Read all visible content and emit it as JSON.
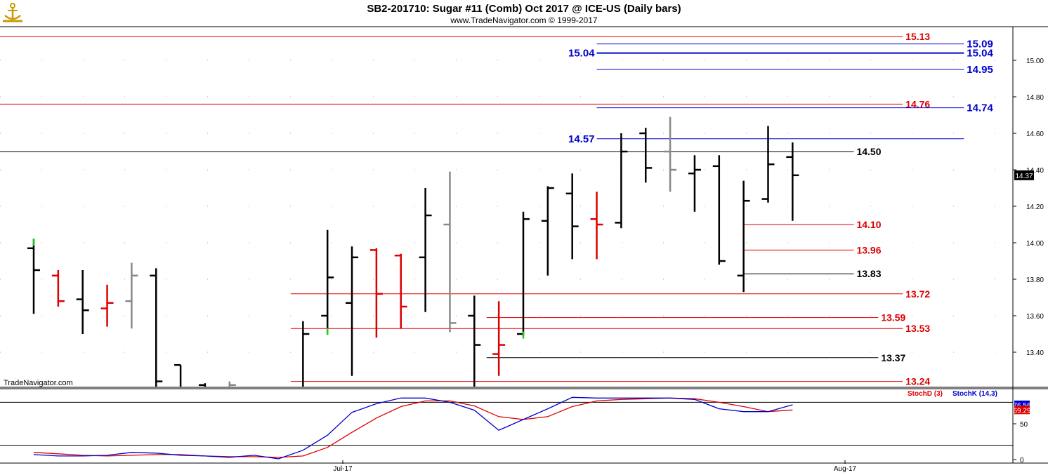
{
  "header": {
    "title": "SB2-201710:  Sugar #11 (Comb) Oct 2017 @ ICE-US  (Daily bars)",
    "subtitle": "www.TradeNavigator.com © 1999-2017",
    "watermark": "TradeNavigator.com",
    "logo_icon": "anchor-logo-icon"
  },
  "colors": {
    "red": "#dd0000",
    "blue": "#0000cc",
    "black": "#000000",
    "gray": "#888888",
    "green": "#22cc22"
  },
  "chart_data": [
    {
      "type": "ohlc",
      "title": "SB2-201710:  Sugar #11 (Comb) Oct 2017 @ ICE-US  (Daily bars)",
      "ylim": [
        13.2,
        15.2
      ],
      "y_ticks": [
        "15.00",
        "14.80",
        "14.60",
        "14.40",
        "14.20",
        "14.00",
        "13.80",
        "13.60",
        "13.40"
      ],
      "x_ticks": [
        "Jul-17",
        "Aug-17"
      ],
      "last_price": "14.37",
      "bars": [
        {
          "o": 13.97,
          "h": 14.02,
          "l": 13.61,
          "c": 13.85,
          "color": "black"
        },
        {
          "o": 13.82,
          "h": 13.85,
          "l": 13.65,
          "c": 13.68,
          "color": "red"
        },
        {
          "o": 13.69,
          "h": 13.85,
          "l": 13.5,
          "c": 13.63,
          "color": "black"
        },
        {
          "o": 13.64,
          "h": 13.77,
          "l": 13.54,
          "c": 13.67,
          "color": "red"
        },
        {
          "o": 13.68,
          "h": 13.89,
          "l": 13.53,
          "c": 13.82,
          "color": "gray"
        },
        {
          "o": 13.82,
          "h": 13.86,
          "l": 13.19,
          "c": 13.24,
          "color": "black"
        },
        {
          "o": 13.33,
          "h": 13.33,
          "l": 13.19,
          "c": 13.19,
          "color": "black"
        },
        {
          "o": 13.22,
          "h": 13.23,
          "l": 13.19,
          "c": 13.19,
          "color": "black"
        },
        {
          "o": 13.2,
          "h": 13.24,
          "l": 13.19,
          "c": 13.22,
          "color": "gray"
        },
        {
          "o": 13.19,
          "h": 13.2,
          "l": 13.19,
          "c": 13.2,
          "color": "black"
        },
        {
          "o": 13.19,
          "h": 13.19,
          "l": 13.19,
          "c": 13.19,
          "color": "black"
        },
        {
          "o": 13.19,
          "h": 13.57,
          "l": 13.19,
          "c": 13.5,
          "color": "black"
        },
        {
          "o": 13.6,
          "h": 14.07,
          "l": 13.5,
          "c": 13.81,
          "color": "black"
        },
        {
          "o": 13.67,
          "h": 13.98,
          "l": 13.27,
          "c": 13.92,
          "color": "black"
        },
        {
          "o": 13.96,
          "h": 13.97,
          "l": 13.48,
          "c": 13.72,
          "color": "red"
        },
        {
          "o": 13.93,
          "h": 13.94,
          "l": 13.53,
          "c": 13.65,
          "color": "red"
        },
        {
          "o": 13.92,
          "h": 14.3,
          "l": 13.62,
          "c": 14.15,
          "color": "black"
        },
        {
          "o": 14.1,
          "h": 14.39,
          "l": 13.51,
          "c": 13.56,
          "color": "gray"
        },
        {
          "o": 13.6,
          "h": 13.71,
          "l": 13.19,
          "c": 13.44,
          "color": "black"
        },
        {
          "o": 13.39,
          "h": 13.68,
          "l": 13.27,
          "c": 13.44,
          "color": "red"
        },
        {
          "o": 13.5,
          "h": 14.17,
          "l": 13.49,
          "c": 14.13,
          "color": "black"
        },
        {
          "o": 14.12,
          "h": 14.31,
          "l": 13.82,
          "c": 14.3,
          "color": "black"
        },
        {
          "o": 14.27,
          "h": 14.38,
          "l": 13.91,
          "c": 14.09,
          "color": "black"
        },
        {
          "o": 14.13,
          "h": 14.28,
          "l": 13.91,
          "c": 14.1,
          "color": "red"
        },
        {
          "o": 14.11,
          "h": 14.6,
          "l": 14.08,
          "c": 14.5,
          "color": "black"
        },
        {
          "o": 14.6,
          "h": 14.63,
          "l": 14.33,
          "c": 14.41,
          "color": "black"
        },
        {
          "o": 14.5,
          "h": 14.69,
          "l": 14.28,
          "c": 14.4,
          "color": "gray"
        },
        {
          "o": 14.38,
          "h": 14.48,
          "l": 14.17,
          "c": 14.4,
          "color": "black"
        },
        {
          "o": 14.42,
          "h": 14.48,
          "l": 13.88,
          "c": 13.9,
          "color": "black"
        },
        {
          "o": 13.82,
          "h": 14.34,
          "l": 13.73,
          "c": 14.23,
          "color": "black"
        },
        {
          "o": 14.24,
          "h": 14.64,
          "l": 14.22,
          "c": 14.43,
          "color": "black"
        },
        {
          "o": 14.47,
          "h": 14.55,
          "l": 14.12,
          "c": 14.37,
          "color": "black"
        }
      ],
      "green_ticks": [
        {
          "bar": 0,
          "price": 14.0
        },
        {
          "bar": 12,
          "price": 13.51
        },
        {
          "bar": 20,
          "price": 13.49
        }
      ],
      "levels": [
        {
          "price": 15.13,
          "label": "15.13",
          "color": "red",
          "from_bar": -2,
          "to_bar": 35.5
        },
        {
          "price": 15.09,
          "label": "15.09",
          "color": "blue",
          "from_bar": 23,
          "to_bar": 38
        },
        {
          "price": 15.04,
          "label": "15.04",
          "color": "blue",
          "from_bar": 23,
          "to_bar": 38,
          "left_label": "15.04"
        },
        {
          "price": 14.95,
          "label": "14.95",
          "color": "blue",
          "from_bar": 23,
          "to_bar": 38
        },
        {
          "price": 14.76,
          "label": "14.76",
          "color": "red",
          "from_bar": -2,
          "to_bar": 35.5
        },
        {
          "price": 14.74,
          "label": "14.74",
          "color": "blue",
          "from_bar": 23,
          "to_bar": 38
        },
        {
          "price": 14.57,
          "left_label": "14.57",
          "color": "blue",
          "from_bar": 23,
          "to_bar": 38
        },
        {
          "price": 14.5,
          "label": "14.50",
          "color": "black",
          "from_bar": -2,
          "to_bar": 33.5
        },
        {
          "price": 14.1,
          "label": "14.10",
          "color": "red",
          "from_bar": 29,
          "to_bar": 33.5
        },
        {
          "price": 13.96,
          "label": "13.96",
          "color": "red",
          "from_bar": 29,
          "to_bar": 33.5
        },
        {
          "price": 13.83,
          "label": "13.83",
          "color": "black",
          "from_bar": 29,
          "to_bar": 33.5
        },
        {
          "price": 13.72,
          "label": "13.72",
          "color": "red",
          "from_bar": 10.5,
          "to_bar": 35.5
        },
        {
          "price": 13.59,
          "label": "13.59",
          "color": "red",
          "from_bar": 18.5,
          "to_bar": 34.5
        },
        {
          "price": 13.53,
          "label": "13.53",
          "color": "red",
          "from_bar": 10.5,
          "to_bar": 35.5
        },
        {
          "price": 13.37,
          "label": "13.37",
          "color": "black",
          "from_bar": 18.5,
          "to_bar": 34.5
        },
        {
          "price": 13.24,
          "label": "13.24",
          "color": "red",
          "from_bar": 10.5,
          "to_bar": 35.5
        }
      ]
    },
    {
      "type": "line",
      "ylim": [
        0,
        100
      ],
      "y_ticks": [
        "50",
        "0"
      ],
      "ref_lines": [
        80,
        20
      ],
      "legend": [
        {
          "name": "StochD (3)",
          "color": "red"
        },
        {
          "name": "StochK (14,3)",
          "color": "blue"
        }
      ],
      "last_values": [
        {
          "label": "69.29",
          "value": 69.29,
          "color": "red"
        },
        {
          "label": "76.56",
          "value": 76.56,
          "color": "blue"
        }
      ],
      "series": [
        {
          "name": "StochD (3)",
          "color": "red",
          "values": [
            10,
            8,
            6,
            5,
            6,
            7,
            7,
            5,
            4,
            4,
            3,
            5,
            17,
            38,
            58,
            74,
            82,
            82,
            75,
            60,
            56,
            60,
            74,
            82,
            84,
            85,
            86,
            85,
            80,
            74,
            67,
            69.29
          ]
        },
        {
          "name": "StochK (14,3)",
          "color": "blue",
          "values": [
            7,
            5,
            5,
            6,
            10,
            9,
            6,
            5,
            3,
            6,
            1,
            13,
            34,
            66,
            78,
            86,
            86,
            80,
            69,
            41,
            56,
            71,
            87,
            86,
            86,
            86,
            86,
            84,
            71,
            67,
            67,
            76.56
          ]
        }
      ]
    }
  ]
}
